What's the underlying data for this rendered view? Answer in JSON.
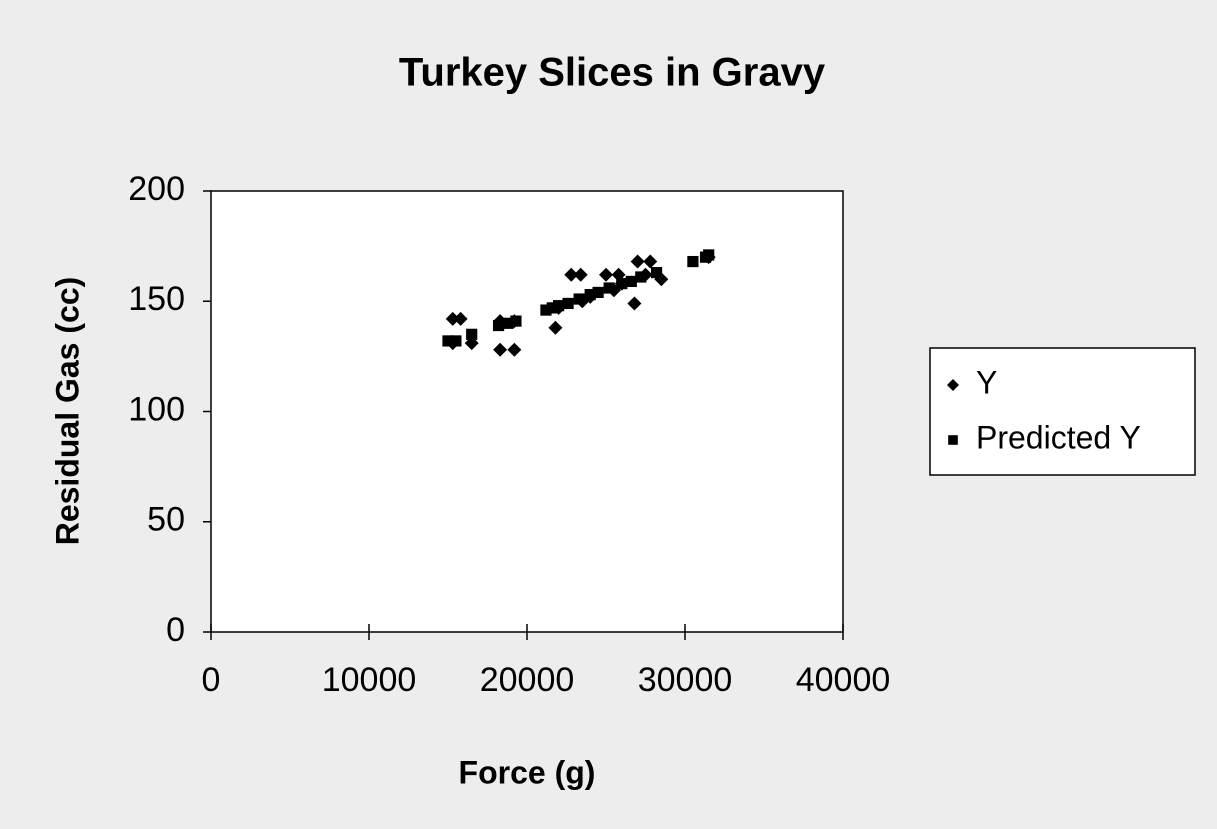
{
  "chart_data": {
    "type": "scatter",
    "title": "Turkey Slices in Gravy",
    "x_label": "Force (g)",
    "y_label": "Residual Gas (cc)",
    "xlim": [
      0,
      40000
    ],
    "xticks": [
      0,
      10000,
      20000,
      30000,
      40000
    ],
    "ylim": [
      0,
      200
    ],
    "yticks": [
      0,
      50,
      100,
      150,
      200
    ],
    "legend": "right",
    "series": [
      {
        "name": "Y",
        "color": "#000000",
        "marker": "diamond",
        "x": [
          15300,
          15800,
          15300,
          16500,
          18300,
          19200,
          18300,
          19200,
          21800,
          22800,
          23400,
          25000,
          25800,
          26800,
          27000,
          27800,
          28500,
          26000,
          24000,
          22000,
          23500,
          25500,
          27500,
          31500
        ],
        "values": [
          142,
          142,
          131,
          131,
          141,
          141,
          128,
          128,
          138,
          162,
          162,
          162,
          162,
          149,
          168,
          168,
          160,
          158,
          152,
          147,
          150,
          155,
          162,
          170
        ]
      },
      {
        "name": "Predicted Y",
        "color": "#000000",
        "marker": "square",
        "x": [
          15000,
          15500,
          16500,
          18200,
          18800,
          19300,
          21200,
          21600,
          22000,
          22600,
          23300,
          24000,
          24500,
          25200,
          26000,
          26600,
          27200,
          28200,
          30500,
          31300,
          31500
        ],
        "values": [
          132,
          132,
          135,
          139,
          140,
          141,
          146,
          147,
          148,
          149,
          151,
          153,
          154,
          156,
          158,
          159,
          161,
          163,
          168,
          170,
          171
        ]
      }
    ]
  }
}
